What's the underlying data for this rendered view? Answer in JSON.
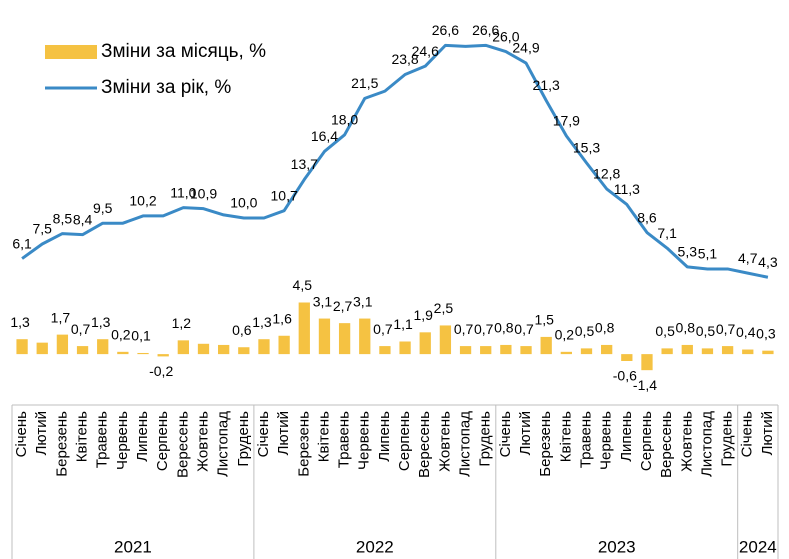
{
  "chart_data": {
    "type": "bar_line",
    "categories": [
      "Січень",
      "Лютий",
      "Березень",
      "Квітень",
      "Травень",
      "Червень",
      "Липень",
      "Серпень",
      "Вересень",
      "Жовтень",
      "Листопад",
      "Грудень",
      "Січень",
      "Лютий",
      "Березень",
      "Квітень",
      "Травень",
      "Червень",
      "Липень",
      "Серпень",
      "Вересень",
      "Жовтень",
      "Листопад",
      "Грудень",
      "Січень",
      "Лютий",
      "Березень",
      "Квітень",
      "Травень",
      "Червень",
      "Липень",
      "Серпень",
      "Вересень",
      "Жовтень",
      "Листопад",
      "Грудень",
      "Січень",
      "Лютий"
    ],
    "groups": [
      {
        "name": "2021",
        "size": 12
      },
      {
        "name": "2022",
        "size": 12
      },
      {
        "name": "2023",
        "size": 12
      },
      {
        "name": "2024",
        "size": 2
      }
    ],
    "ylim": [
      -4,
      30
    ],
    "y2lim": [
      -7.5,
      30
    ],
    "legend": "top-left",
    "series": [
      {
        "name": "Зміни за місяць, %",
        "type": "bar",
        "color": "#f5c242",
        "values": [
          1.3,
          1.0,
          1.7,
          0.7,
          1.3,
          0.2,
          0.1,
          -0.2,
          1.2,
          0.9,
          0.8,
          0.6,
          1.3,
          1.6,
          4.5,
          3.1,
          2.7,
          3.1,
          0.7,
          1.1,
          1.9,
          2.5,
          0.7,
          0.7,
          0.8,
          0.7,
          1.5,
          0.2,
          0.5,
          0.8,
          -0.6,
          -1.4,
          0.5,
          0.8,
          0.5,
          0.7,
          0.4,
          0.3
        ],
        "value_labels": [
          "1,3",
          null,
          "1,7",
          "0,7",
          "1,3",
          "0,2",
          "0,1",
          "-0,2",
          "1,2",
          null,
          null,
          "0,6",
          "1,3",
          "1,6",
          "4,5",
          "3,1",
          "2,7",
          "3,1",
          "0,7",
          "1,1",
          "1,9",
          "2,5",
          "0,7",
          "0,7",
          "0,8",
          "0,7",
          "1,5",
          "0,2",
          "0,5",
          "0,8",
          "-0,6",
          "-1,4",
          "0,5",
          "0,8",
          "0,5",
          "0,7",
          "0,4",
          "0,3"
        ]
      },
      {
        "name": "Зміни за рік, %",
        "type": "line",
        "axis": "y2",
        "color": "#3a8ac6",
        "values": [
          6.1,
          7.5,
          8.5,
          8.4,
          9.5,
          9.5,
          10.2,
          10.2,
          11.0,
          10.9,
          10.3,
          10.0,
          10.0,
          10.7,
          13.7,
          16.4,
          18.0,
          21.5,
          22.2,
          23.8,
          24.6,
          26.6,
          26.5,
          26.6,
          26.0,
          24.9,
          21.3,
          17.9,
          15.3,
          12.8,
          11.3,
          8.6,
          7.1,
          5.3,
          5.1,
          5.1,
          4.7,
          4.3
        ],
        "value_labels": [
          "6,1",
          "7,5",
          "8,5",
          "8,4",
          "9,5",
          null,
          "10,2",
          null,
          "11,0",
          "10,9",
          null,
          "10,0",
          null,
          "10,7",
          "13,7",
          "16,4",
          "18,0",
          "21,5",
          null,
          "23,8",
          "24,6",
          "26,6",
          null,
          "26,6",
          "26,0",
          "24,9",
          "21,3",
          "17,9",
          "15,3",
          "12,8",
          "11,3",
          "8,6",
          "7,1",
          "5,3",
          "5,1",
          null,
          "4,7",
          "4,3"
        ]
      }
    ]
  }
}
